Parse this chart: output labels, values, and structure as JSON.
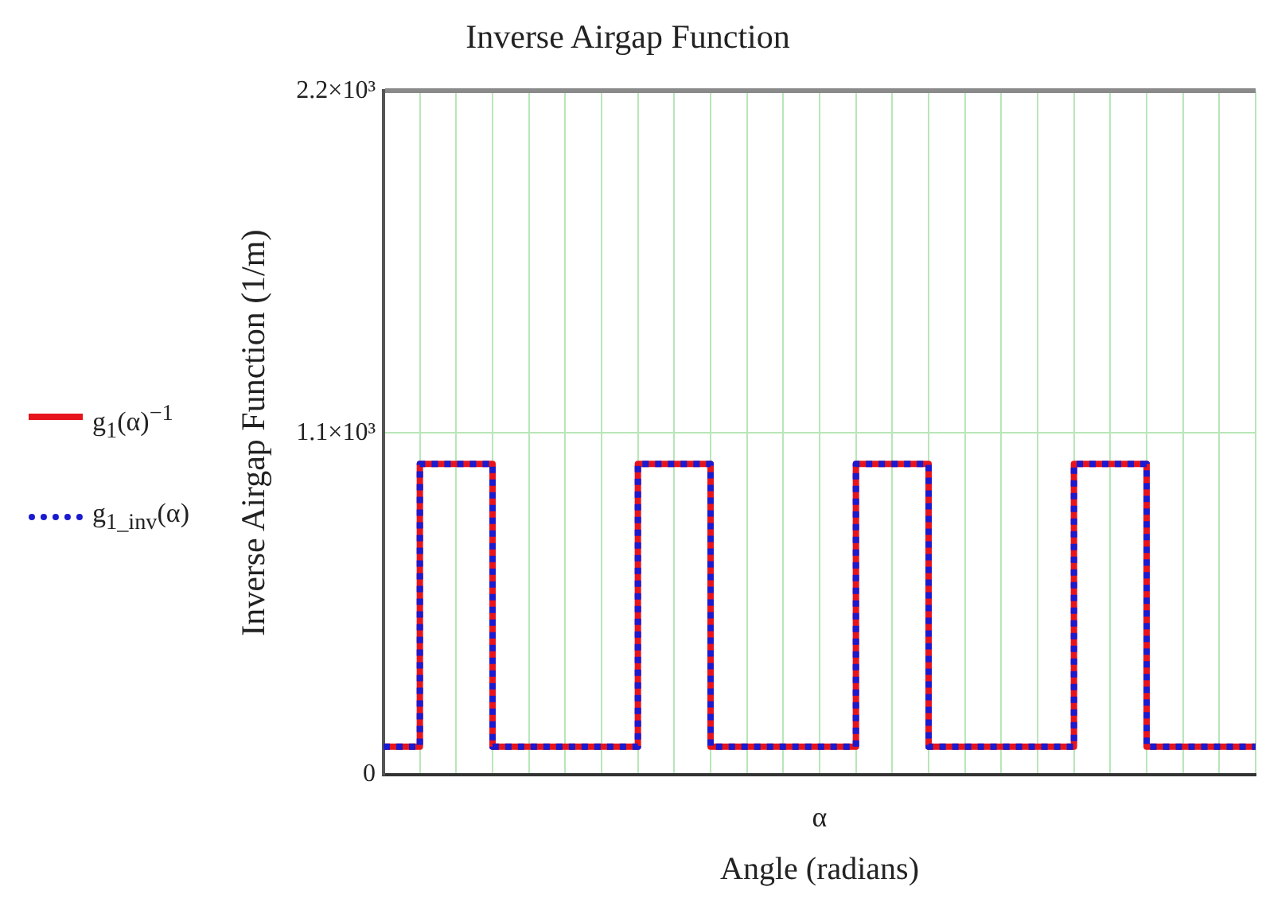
{
  "chart_data": {
    "type": "step",
    "title": "Inverse Airgap Function",
    "xlabel": "Angle (radians)",
    "ylabel": "Inverse Airgap Function (1/m)",
    "annotations": [
      "α"
    ],
    "categories": [
      null,
      null,
      null,
      null,
      null,
      null,
      null,
      null,
      null,
      null,
      null,
      null,
      null,
      null,
      null,
      null,
      null,
      null,
      null,
      null,
      null,
      null,
      null,
      null,
      null
    ],
    "series": [
      {
        "name": "g$_{1}$(α)$^{−1}$",
        "color": "#e8141c",
        "line_style": "solid",
        "values": [
          90,
          90,
          1000,
          1000,
          90,
          90,
          90,
          90,
          1000,
          1000,
          90,
          90,
          90,
          90,
          1000,
          1000,
          90,
          90,
          90,
          90,
          1000,
          1000,
          90,
          90,
          90
        ]
      },
      {
        "name": "g$_{1_inv}$(α)",
        "color": "#1a1ad0",
        "line_style": "dotted",
        "values": [
          90,
          90,
          1000,
          1000,
          90,
          90,
          90,
          90,
          1000,
          1000,
          90,
          90,
          90,
          90,
          1000,
          1000,
          90,
          90,
          90,
          90,
          1000,
          1000,
          90,
          90,
          90
        ]
      }
    ],
    "ylim": [
      0,
      2200
    ],
    "yticks": [
      0,
      {
        "value": 1100,
        "label": "1.1×10³"
      },
      {
        "value": 2200,
        "label": "2.2×10³"
      }
    ],
    "grid": true,
    "legend": "left",
    "tick_labels": "y",
    "marker": "none"
  }
}
